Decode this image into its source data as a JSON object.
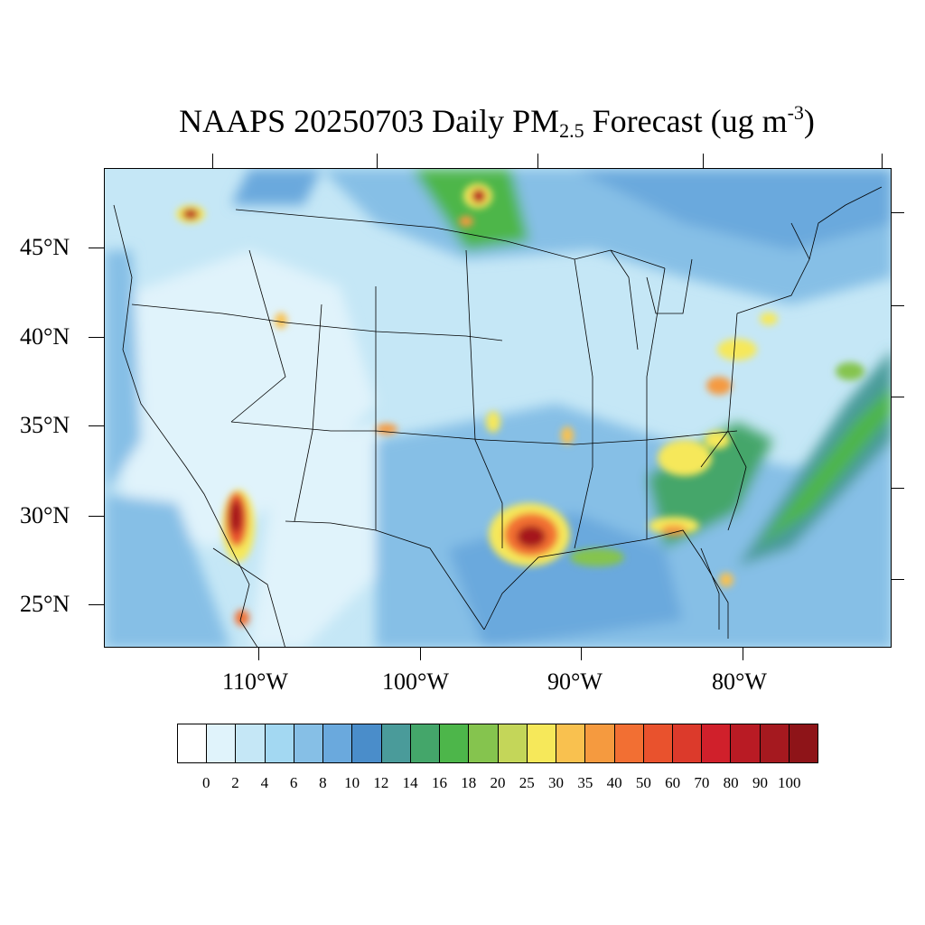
{
  "title": {
    "prefix": "NAAPS 20250703 Daily PM",
    "subscript": "2.5",
    "middle": " Forecast (ug m",
    "superscript": "-3",
    "suffix": ")"
  },
  "axes": {
    "lat_labels": [
      "45°N",
      "40°N",
      "35°N",
      "30°N",
      "25°N"
    ],
    "lon_labels": [
      "110°W",
      "100°W",
      "90°W",
      "80°W"
    ]
  },
  "colorbar": {
    "labels": [
      "0",
      "2",
      "4",
      "6",
      "8",
      "10",
      "12",
      "14",
      "16",
      "18",
      "20",
      "25",
      "30",
      "35",
      "40",
      "50",
      "60",
      "70",
      "80",
      "90",
      "100"
    ],
    "colors": [
      "#ffffff",
      "#e0f3fb",
      "#c5e7f6",
      "#a3d8f2",
      "#86bfe6",
      "#6aa9dd",
      "#4a8dca",
      "#4a9b9a",
      "#44a66a",
      "#4db64a",
      "#85c44e",
      "#c4d659",
      "#f6e85a",
      "#f9c14f",
      "#f59a3f",
      "#f26f33",
      "#e9522d",
      "#dc3a2b",
      "#d0202b",
      "#b91b24",
      "#a5191f",
      "#8e1418"
    ]
  },
  "map_legend_semantics": {
    "variable": "PM2.5",
    "units": "ug m-3",
    "date": "20250703"
  }
}
